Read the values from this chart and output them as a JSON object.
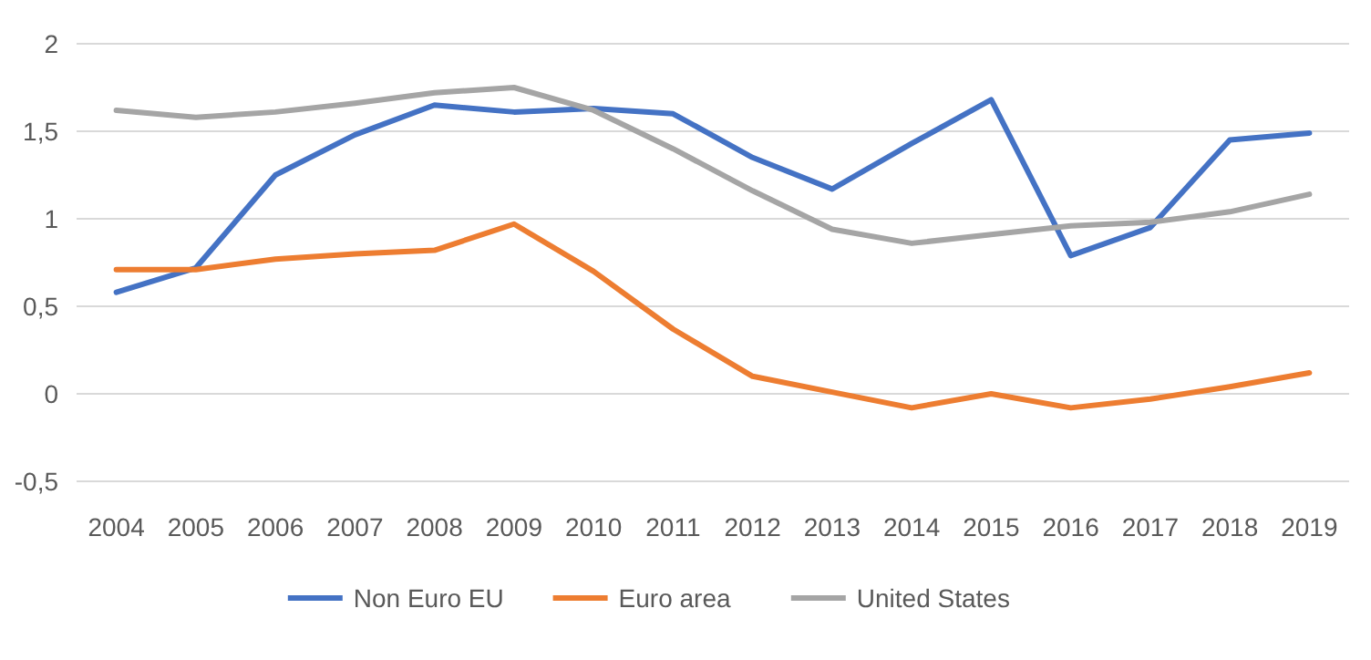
{
  "chart_data": {
    "type": "line",
    "categories": [
      "2004",
      "2005",
      "2006",
      "2007",
      "2008",
      "2009",
      "2010",
      "2011",
      "2012",
      "2013",
      "2014",
      "2015",
      "2016",
      "2017",
      "2018",
      "2019"
    ],
    "series": [
      {
        "name": "Non Euro EU",
        "color": "#4472c4",
        "values": [
          0.58,
          0.72,
          1.25,
          1.48,
          1.65,
          1.61,
          1.63,
          1.6,
          1.35,
          1.17,
          1.43,
          1.68,
          0.79,
          0.95,
          1.45,
          1.49
        ]
      },
      {
        "name": "Euro area",
        "color": "#ed7d31",
        "values": [
          0.71,
          0.71,
          0.77,
          0.8,
          0.82,
          0.97,
          0.7,
          0.37,
          0.1,
          0.01,
          -0.08,
          0.0,
          -0.08,
          -0.03,
          0.04,
          0.12
        ]
      },
      {
        "name": "United States",
        "color": "#a5a5a5",
        "values": [
          1.62,
          1.58,
          1.61,
          1.66,
          1.72,
          1.75,
          1.62,
          1.4,
          1.16,
          0.94,
          0.86,
          0.91,
          0.96,
          0.98,
          1.04,
          1.14
        ]
      }
    ],
    "ylim": [
      -0.5,
      2
    ],
    "yticks": [
      {
        "value": -0.5,
        "label": "-0,5"
      },
      0,
      {
        "value": 0.5,
        "label": "0,5"
      },
      1,
      {
        "value": 1.5,
        "label": "1,5"
      },
      2
    ],
    "grid": "y",
    "legend": "bottom",
    "marker": "none",
    "line_style": "solid"
  }
}
